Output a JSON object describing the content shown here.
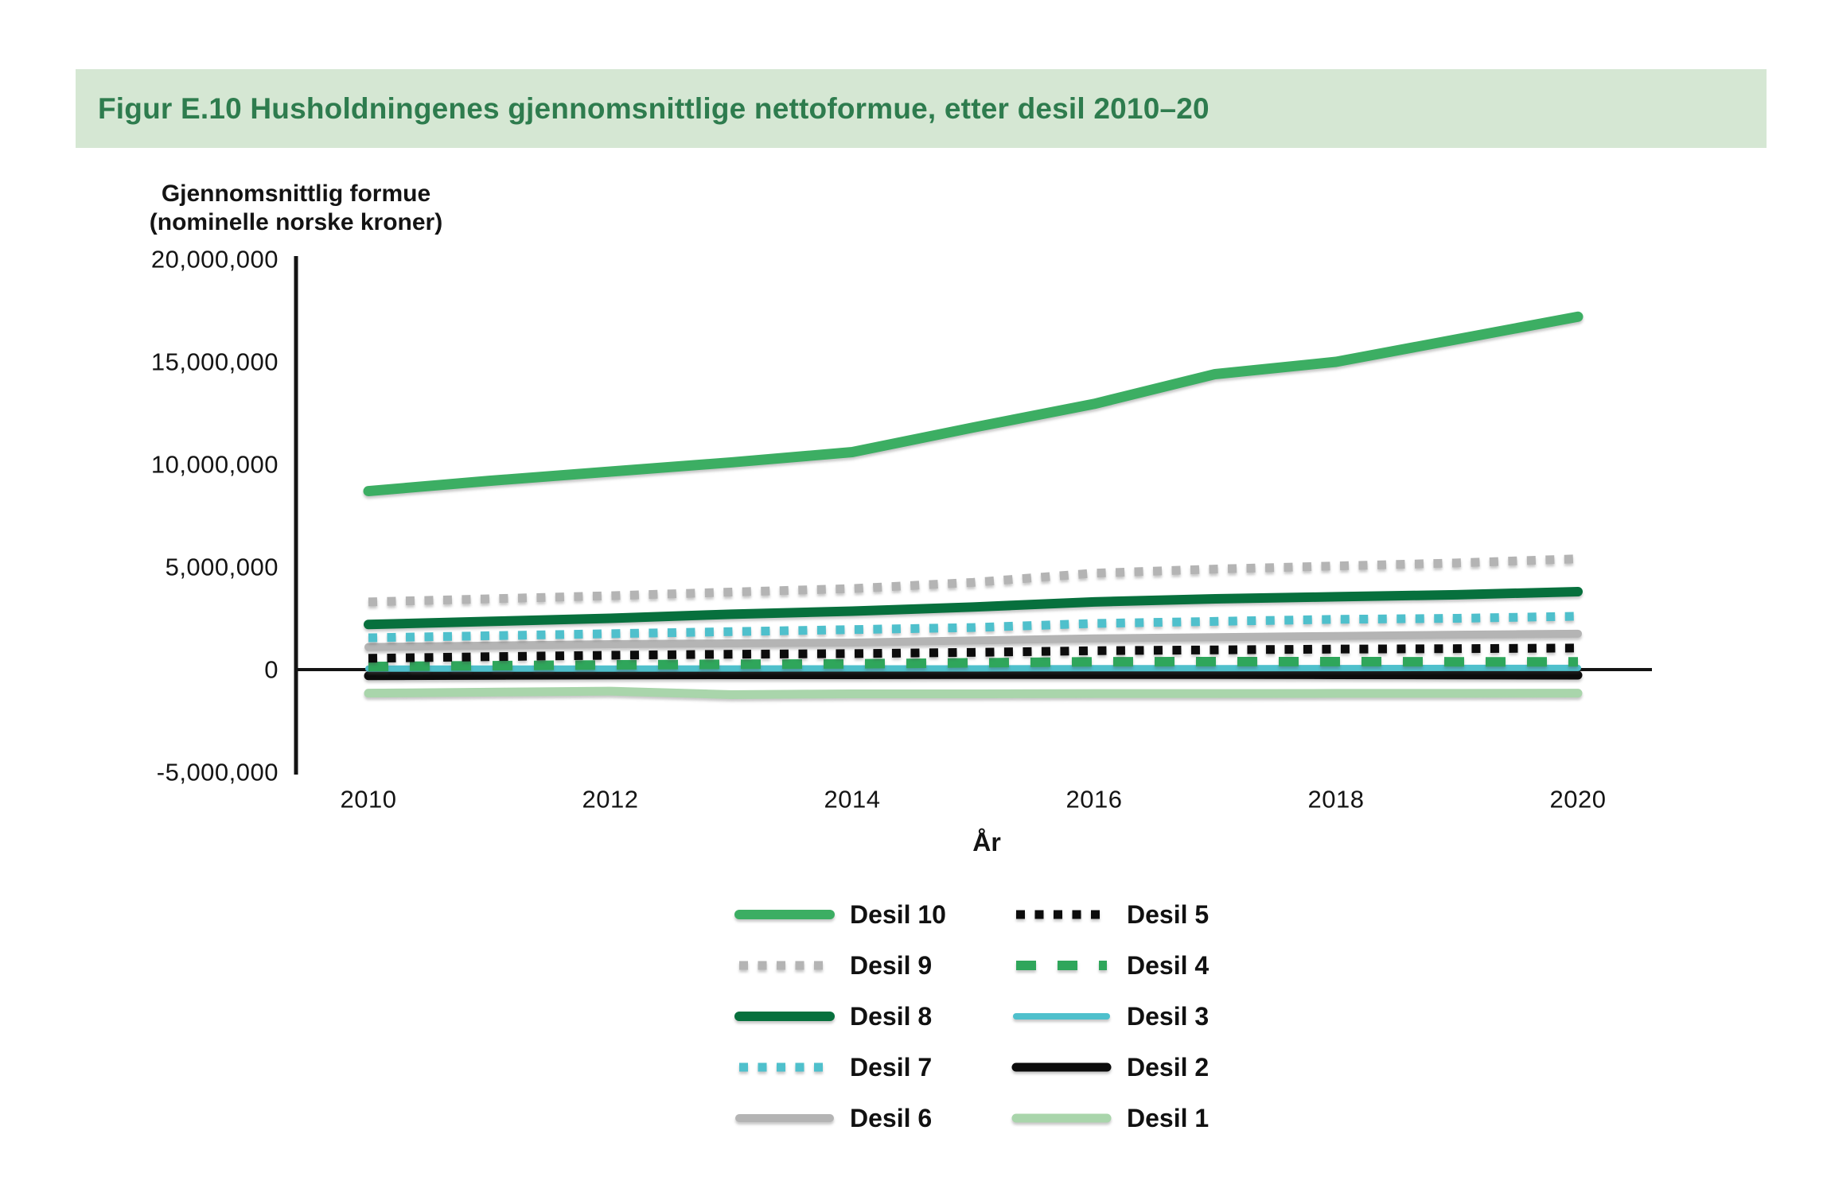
{
  "title": "Figur E.10 Husholdningenes gjennomsnittlige nettoformue, etter desil 2010–20",
  "colors": {
    "title_band_bg": "#d5e7d3",
    "title_text": "#2e7c4e",
    "axis": "#141414"
  },
  "y_axis": {
    "label_line1": "Gjennomsnittlig formue",
    "label_line2": "(nominelle norske kroner)",
    "ticks": [
      {
        "label": "20,000,000",
        "value": 20000000
      },
      {
        "label": "15,000,000",
        "value": 15000000
      },
      {
        "label": "10,000,000",
        "value": 10000000
      },
      {
        "label": "5,000,000",
        "value": 5000000
      },
      {
        "label": "0",
        "value": 0
      },
      {
        "label": "-5,000,000",
        "value": -5000000
      }
    ]
  },
  "x_axis": {
    "label": "År",
    "ticks": [
      {
        "label": "2010",
        "value": 2010
      },
      {
        "label": "2012",
        "value": 2012
      },
      {
        "label": "2014",
        "value": 2014
      },
      {
        "label": "2016",
        "value": 2016
      },
      {
        "label": "2018",
        "value": 2018
      },
      {
        "label": "2020",
        "value": 2020
      }
    ]
  },
  "legend": {
    "column1": [
      "Desil 10",
      "Desil 9",
      "Desil 8",
      "Desil 7",
      "Desil 6"
    ],
    "column2": [
      "Desil 5",
      "Desil 4",
      "Desil 3",
      "Desil 2",
      "Desil 1"
    ]
  },
  "chart_data": {
    "type": "line",
    "title": "Figur E.10 Husholdningenes gjennomsnittlige nettoformue, etter desil 2010–20",
    "xlabel": "År",
    "ylabel": "Gjennomsnittlig formue (nominelle norske kroner)",
    "x": [
      2010,
      2011,
      2012,
      2013,
      2014,
      2015,
      2016,
      2017,
      2018,
      2019,
      2020
    ],
    "ylim": [
      -5000000,
      20000000
    ],
    "grid": false,
    "legend_position": "bottom",
    "series": [
      {
        "name": "Desil 10",
        "color": "#3cae63",
        "style": "solid",
        "width": 13,
        "values": [
          8700000,
          9200000,
          9650000,
          10100000,
          10600000,
          11800000,
          12950000,
          14400000,
          15000000,
          16100000,
          17200000
        ]
      },
      {
        "name": "Desil 9",
        "color": "#b4b4b4",
        "style": "dotted",
        "width": 11,
        "values": [
          3300000,
          3450000,
          3600000,
          3780000,
          3950000,
          4250000,
          4700000,
          4900000,
          5050000,
          5200000,
          5400000
        ]
      },
      {
        "name": "Desil 8",
        "color": "#07703d",
        "style": "solid",
        "width": 12,
        "values": [
          2200000,
          2350000,
          2500000,
          2700000,
          2850000,
          3050000,
          3300000,
          3450000,
          3550000,
          3650000,
          3800000
        ]
      },
      {
        "name": "Desil 7",
        "color": "#4fc0cc",
        "style": "dotted",
        "width": 11,
        "values": [
          1550000,
          1650000,
          1750000,
          1850000,
          1950000,
          2050000,
          2250000,
          2350000,
          2450000,
          2500000,
          2600000
        ]
      },
      {
        "name": "Desil 6",
        "color": "#b4b4b4",
        "style": "solid",
        "width": 10,
        "values": [
          1100000,
          1170000,
          1240000,
          1280000,
          1320000,
          1420000,
          1520000,
          1580000,
          1640000,
          1700000,
          1750000
        ]
      },
      {
        "name": "Desil 5",
        "color": "#0c0c0c",
        "style": "dotted",
        "width": 11,
        "values": [
          550000,
          630000,
          700000,
          750000,
          780000,
          840000,
          920000,
          960000,
          1000000,
          1020000,
          1050000
        ]
      },
      {
        "name": "Desil 4",
        "color": "#2fa65b",
        "style": "dashed",
        "width": 12,
        "values": [
          150000,
          190000,
          230000,
          260000,
          280000,
          330000,
          380000,
          390000,
          390000,
          380000,
          380000
        ]
      },
      {
        "name": "Desil 3",
        "color": "#4fc0cc",
        "style": "solid",
        "width": 8,
        "values": [
          50000,
          50000,
          50000,
          55000,
          60000,
          60000,
          70000,
          70000,
          75000,
          80000,
          80000
        ]
      },
      {
        "name": "Desil 2",
        "color": "#0c0c0c",
        "style": "solid",
        "width": 11,
        "values": [
          -300000,
          -280000,
          -260000,
          -250000,
          -250000,
          -240000,
          -240000,
          -240000,
          -250000,
          -260000,
          -270000
        ]
      },
      {
        "name": "Desil 1",
        "color": "#a9d5ab",
        "style": "solid",
        "width": 11,
        "values": [
          -1150000,
          -1100000,
          -1050000,
          -1220000,
          -1180000,
          -1180000,
          -1170000,
          -1170000,
          -1160000,
          -1160000,
          -1150000
        ]
      }
    ]
  }
}
